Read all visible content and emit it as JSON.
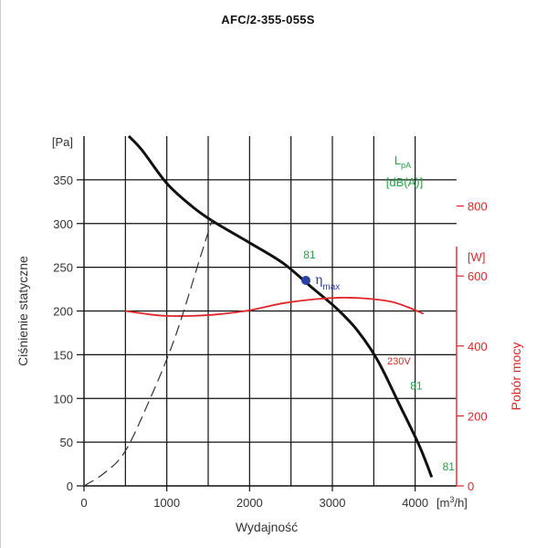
{
  "title": "AFC/2-355-055S",
  "chart_data": {
    "type": "line",
    "title": "AFC/2-355-055S",
    "xlabel": "Wydajność",
    "x_unit": "[m³/h]",
    "x_unit_base": "[m",
    "x_unit_sup": "3",
    "x_unit_tail": "/h]",
    "xlim": [
      0,
      4500
    ],
    "x_ticks": [
      0,
      1000,
      2000,
      3000,
      4000
    ],
    "ylabel": "Ciśnienie statyczne",
    "y_unit": "[Pa]",
    "ylim": [
      0,
      400
    ],
    "y_ticks": [
      0,
      50,
      100,
      150,
      200,
      250,
      300,
      350
    ],
    "y2label": "Pobór mocy",
    "y2_unit": "[W]",
    "y2lim": [
      0,
      1000
    ],
    "y2_ticks": [
      0,
      200,
      400,
      600,
      800
    ],
    "grid": true,
    "series": [
      {
        "kind": "pressure",
        "color": "#111111",
        "x": [
          540,
          700,
          1000,
          1300,
          1550,
          2000,
          2400,
          2750,
          3050,
          3300,
          3550,
          3800,
          4050,
          4200
        ],
        "y": [
          400,
          384,
          346,
          320,
          303,
          278,
          255,
          227,
          203,
          178,
          143,
          95,
          46,
          10
        ]
      },
      {
        "name": "230V",
        "kind": "power",
        "color": "#e0262b",
        "x": [
          500,
          800,
          1000,
          1300,
          1600,
          2000,
          2400,
          2800,
          3100,
          3400,
          3700,
          3900,
          4100
        ],
        "y": [
          500,
          490,
          486,
          486,
          490,
          502,
          522,
          534,
          538,
          536,
          527,
          512,
          492
        ]
      },
      {
        "kind": "system-curve",
        "color": "#333333",
        "dashed": true,
        "x": [
          0,
          250,
          500,
          800,
          1100,
          1400,
          1550
        ],
        "y": [
          0,
          15,
          40,
          100,
          170,
          260,
          305
        ]
      }
    ],
    "annotations": {
      "lpa_label": "L",
      "lpa_sub": "pA",
      "lpa_unit": "[dB(A)]",
      "eta_label": "η",
      "eta_sub": "max",
      "eta_point": {
        "x": 2680,
        "y": 235
      },
      "voltage_label": "230V",
      "db_levels": [
        {
          "text": "81",
          "x": 2650,
          "y": 260
        },
        {
          "text": "81",
          "x": 3940,
          "y": 110
        },
        {
          "text": "81",
          "x": 4330,
          "y": 18
        }
      ]
    }
  }
}
